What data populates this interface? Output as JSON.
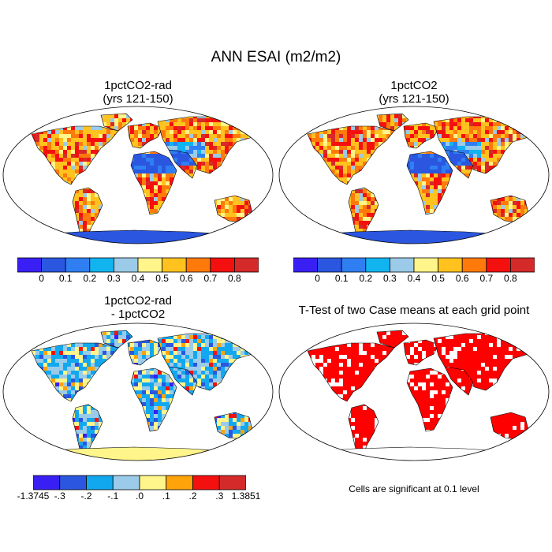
{
  "title": "ANN ESAI (m2/m2)",
  "panels": [
    {
      "id": "p1",
      "title_line1": "1pctCO2-rad",
      "title_line2": "(yrs 121-150)"
    },
    {
      "id": "p2",
      "title_line1": "1pctCO2",
      "title_line2": "(yrs 121-150)"
    },
    {
      "id": "p3",
      "title_line1": "1pctCO2-rad",
      "title_line2": "- 1pctCO2"
    },
    {
      "id": "p4",
      "title_line1": "T-Test of two Case means at each grid point",
      "title_line2": ""
    }
  ],
  "colorbar_abs": {
    "colors": [
      "#3a1ff5",
      "#2a56e0",
      "#2f7ff2",
      "#12b4f0",
      "#9bcbe8",
      "#fff58a",
      "#ffc21f",
      "#ff7a0a",
      "#f51010",
      "#d42a2a"
    ],
    "labels": [
      "0",
      "0.1",
      "0.2",
      "0.3",
      "0.4",
      "0.5",
      "0.6",
      "0.7",
      "0.8"
    ]
  },
  "colorbar_diff": {
    "colors": [
      "#3a1ff5",
      "#2a56e0",
      "#12a8f0",
      "#9bcbe8",
      "#fff58a",
      "#ffa30a",
      "#f51010",
      "#d42a2a"
    ],
    "labels": [
      "-1.3745",
      "-.3",
      "-.2",
      "-.1",
      ".0",
      ".1",
      ".2",
      ".3",
      "1.3851"
    ]
  },
  "significance_color": "#ff0000",
  "note": "Cells are significant at 0.1 level"
}
